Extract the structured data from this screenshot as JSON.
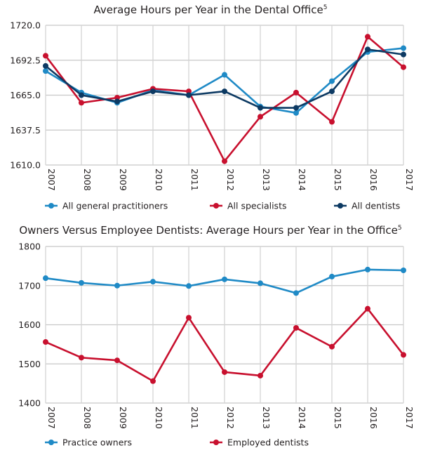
{
  "chart_data": [
    {
      "type": "line",
      "title": "Average Hours per Year in the Dental Office",
      "title_superscript": "5",
      "x": [
        "2007",
        "2008",
        "2009",
        "2010",
        "2011",
        "2012",
        "2013",
        "2014",
        "2015",
        "2016",
        "2017"
      ],
      "yticks": [
        "1610.0",
        "1637.5",
        "1665.0",
        "1692.5",
        "1720.0"
      ],
      "ylim": [
        1610,
        1720
      ],
      "grid": true,
      "legend_position": "bottom",
      "series": [
        {
          "name": "All general practitioners",
          "color": "#1f8ac6",
          "values": [
            1684,
            1667,
            1659,
            1669,
            1665,
            1681,
            1656,
            1651,
            1676,
            1699,
            1702
          ]
        },
        {
          "name": "All specialists",
          "color": "#c8102e",
          "values": [
            1696,
            1659,
            1663,
            1670,
            1668,
            1613,
            1648,
            1667,
            1644,
            1711,
            1687
          ]
        },
        {
          "name": "All dentists",
          "color": "#0d3a63",
          "values": [
            1688,
            1665,
            1660,
            1668,
            1665,
            1668,
            1655,
            1655,
            1668,
            1701,
            1697
          ]
        }
      ]
    },
    {
      "type": "line",
      "title": "Owners Versus Employee Dentists: Average Hours per Year in the Office",
      "title_superscript": "5",
      "x": [
        "2007",
        "2008",
        "2009",
        "2010",
        "2011",
        "2012",
        "2013",
        "2014",
        "2015",
        "2016",
        "2017"
      ],
      "yticks": [
        "1400",
        "1500",
        "1600",
        "1700",
        "1800"
      ],
      "ylim": [
        1400,
        1800
      ],
      "grid": true,
      "legend_position": "bottom",
      "series": [
        {
          "name": "Practice owners",
          "color": "#1f8ac6",
          "values": [
            1719,
            1707,
            1700,
            1710,
            1699,
            1716,
            1706,
            1681,
            1723,
            1741,
            1739
          ]
        },
        {
          "name": "Employed dentists",
          "color": "#c8102e",
          "values": [
            1556,
            1516,
            1509,
            1456,
            1618,
            1479,
            1470,
            1592,
            1544,
            1641,
            1523
          ]
        }
      ]
    }
  ]
}
